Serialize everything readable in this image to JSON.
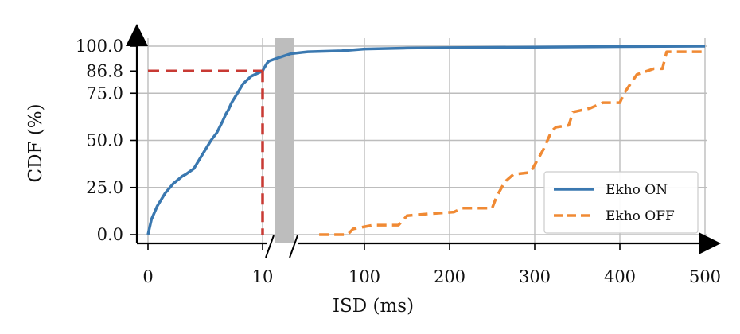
{
  "chart_data": {
    "type": "line",
    "xlabel": "ISD (ms)",
    "ylabel": "CDF (%)",
    "x_ticks": [
      "0",
      "10",
      "100",
      "200",
      "300",
      "400",
      "500"
    ],
    "y_ticks": [
      "0.0",
      "25.0",
      "50.0",
      "75.0",
      "86.8",
      "100.0"
    ],
    "x_scale": "broken axis: linear 0-10 ms, then linear 100-500 ms",
    "ylim": [
      0,
      100
    ],
    "grid": true,
    "legend_position": "lower-right",
    "annotation": {
      "x": 10,
      "y": 86.8,
      "style": "dashed red guide lines"
    },
    "axis_break_marker": "gray band between 10 and 100",
    "series": [
      {
        "name": "Ekho ON",
        "color": "#3a78b0",
        "style": "solid",
        "x": [
          0,
          0.3,
          0.8,
          1.5,
          2.2,
          3.0,
          3.3,
          4.0,
          4.5,
          5.0,
          5.5,
          6.0,
          6.5,
          6.8,
          7.0,
          7.3,
          7.8,
          8.3,
          9.0,
          10.0,
          11.0,
          12.0,
          13.0,
          14.0,
          15.5,
          20,
          25,
          35,
          50,
          80,
          90,
          100,
          150,
          200,
          300,
          400,
          500
        ],
        "y": [
          0,
          8,
          15,
          22,
          27,
          31,
          32,
          35,
          40,
          45,
          50,
          54,
          60,
          64,
          66,
          70,
          75,
          80,
          84,
          86.8,
          88,
          89,
          90,
          91,
          92,
          93,
          94,
          96,
          97,
          97.5,
          98,
          98.5,
          99,
          99.2,
          99.5,
          99.8,
          100
        ]
      },
      {
        "name": "Ekho OFF",
        "color": "#f08a34",
        "style": "dashed",
        "x": [
          60,
          85,
          90,
          110,
          140,
          150,
          175,
          205,
          215,
          240,
          250,
          255,
          265,
          275,
          295,
          310,
          315,
          320,
          325,
          340,
          345,
          365,
          380,
          400,
          405,
          420,
          440,
          450,
          455,
          470,
          500
        ],
        "y": [
          0,
          0,
          3,
          5,
          5,
          10,
          11,
          12,
          14,
          14,
          14,
          20,
          28,
          32,
          33,
          45,
          50,
          55,
          57,
          58,
          65,
          67,
          70,
          70,
          75,
          85,
          88,
          88,
          97,
          97,
          97
        ]
      }
    ]
  }
}
